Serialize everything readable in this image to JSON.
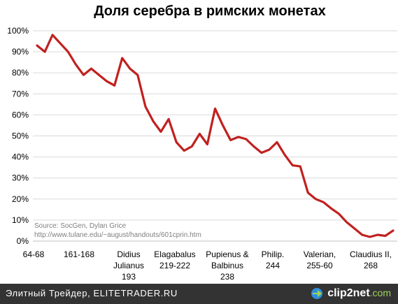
{
  "chart_data": {
    "type": "line",
    "title": "Доля серебра в римских монетах",
    "xlabel": "",
    "ylabel": "",
    "ylim": [
      0,
      100
    ],
    "yticks": [
      "0%",
      "10%",
      "20%",
      "30%",
      "40%",
      "50%",
      "60%",
      "70%",
      "80%",
      "90%",
      "100%"
    ],
    "x_tick_labels": [
      [
        "64-68"
      ],
      [
        "161-168"
      ],
      [
        "Didius",
        "Julianus",
        "193"
      ],
      [
        "Elagabalus",
        "219-222"
      ],
      [
        "Pupienus &",
        "Balbinus",
        "238"
      ],
      [
        "Philip.",
        "244"
      ],
      [
        "Valerian,",
        "255-60"
      ],
      [
        "Claudius II,",
        "268"
      ]
    ],
    "source_lines": [
      "Source: SocGen, Dylan Grice",
      "http://www.tulane.edu/~august/handouts/601cprin.htm"
    ],
    "series": [
      {
        "color": "#c0211f",
        "values": [
          93,
          90,
          98,
          94,
          90,
          84,
          79,
          82,
          79,
          76,
          74,
          87,
          82,
          79,
          64,
          57,
          52,
          58,
          47,
          43,
          45,
          51,
          46,
          63,
          55,
          48,
          49.5,
          48.5,
          45,
          42,
          43.5,
          47,
          41,
          36,
          35.5,
          23,
          20,
          18.5,
          15.5,
          13,
          9,
          6,
          3,
          2,
          3,
          2.5,
          5
        ]
      }
    ],
    "grid": true,
    "legend": "none"
  },
  "footer": {
    "left_text": "Элитный Трейдер, ELITETRADER.RU",
    "logo_main": "clip2net",
    "logo_suffix": ".com"
  }
}
